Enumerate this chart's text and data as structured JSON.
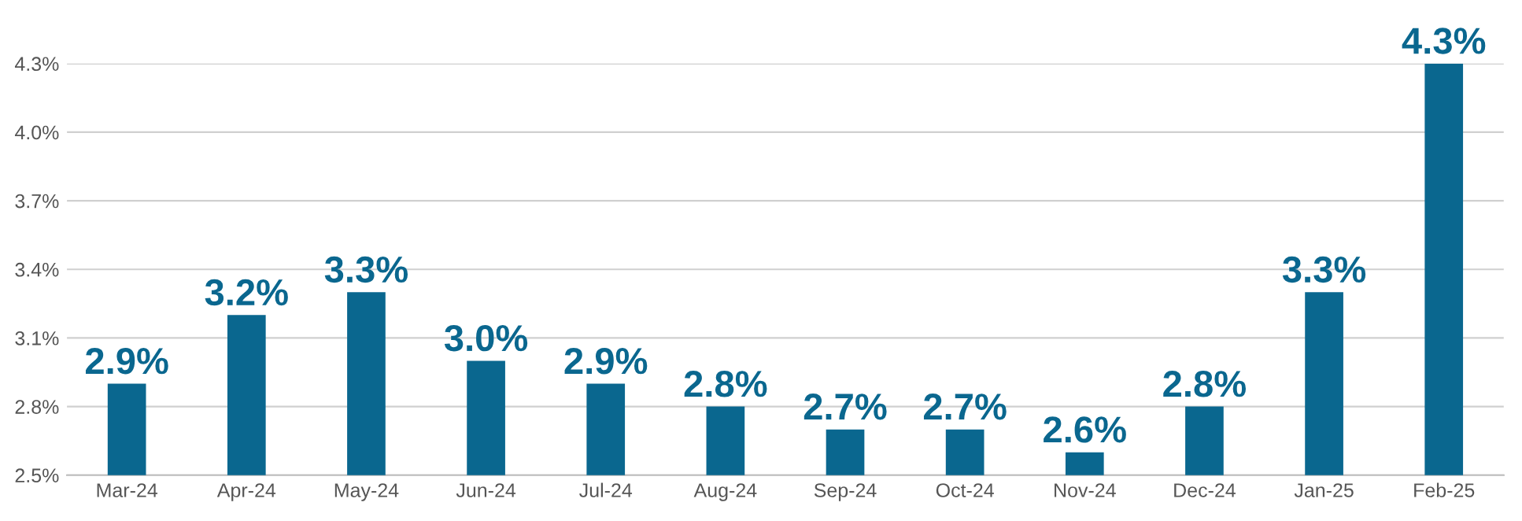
{
  "chart_data": {
    "type": "bar",
    "categories": [
      "Mar-24",
      "Apr-24",
      "May-24",
      "Jun-24",
      "Jul-24",
      "Aug-24",
      "Sep-24",
      "Oct-24",
      "Nov-24",
      "Dec-24",
      "Jan-25",
      "Feb-25"
    ],
    "values": [
      2.9,
      3.2,
      3.3,
      3.0,
      2.9,
      2.8,
      2.7,
      2.7,
      2.6,
      2.8,
      3.3,
      4.3
    ],
    "value_labels": [
      "2.9%",
      "3.2%",
      "3.3%",
      "3.0%",
      "2.9%",
      "2.8%",
      "2.7%",
      "2.7%",
      "2.6%",
      "2.8%",
      "3.3%",
      "4.3%"
    ],
    "color": "#0a678f",
    "ylim": [
      2.5,
      4.3
    ],
    "yticks": [
      {
        "value": 2.5,
        "label": "2.5%"
      },
      {
        "value": 2.8,
        "label": "2.8%"
      },
      {
        "value": 3.1,
        "label": "3.1%"
      },
      {
        "value": 3.4,
        "label": "3.4%"
      },
      {
        "value": 3.7,
        "label": "3.7%"
      },
      {
        "value": 4.0,
        "label": "4.0%"
      },
      {
        "value": 4.3,
        "label": "4.3%"
      }
    ],
    "grid": "y"
  }
}
